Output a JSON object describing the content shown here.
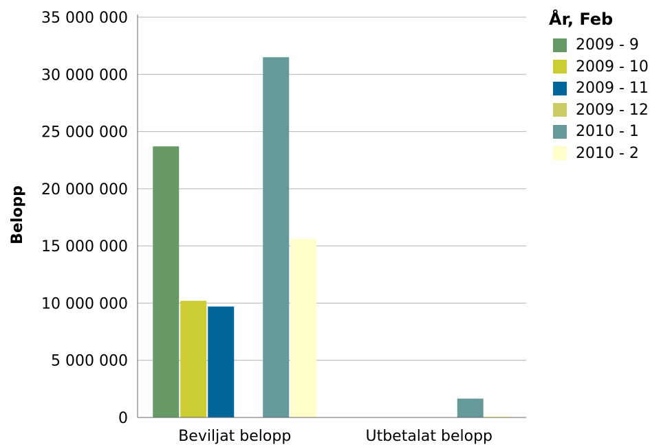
{
  "chart_data": {
    "type": "bar",
    "title": "",
    "xlabel": "",
    "ylabel": "Belopp",
    "ylim": [
      0,
      35000000
    ],
    "yticks": [
      0,
      5000000,
      10000000,
      15000000,
      20000000,
      25000000,
      30000000,
      35000000
    ],
    "ytick_labels": [
      "0",
      "5 000 000",
      "10 000 000",
      "15 000 000",
      "20 000 000",
      "25 000 000",
      "30 000 000",
      "35 000 000"
    ],
    "grid": true,
    "legend_title": "År, Feb",
    "legend_position": "top-right",
    "categories": [
      "Beviljat belopp",
      "Utbetalat belopp"
    ],
    "series": [
      {
        "name": "2009 - 9",
        "color": "#669966",
        "values": [
          23700000,
          0
        ]
      },
      {
        "name": "2009 - 10",
        "color": "#cccc33",
        "values": [
          10200000,
          0
        ]
      },
      {
        "name": "2009 - 11",
        "color": "#006699",
        "values": [
          9700000,
          0
        ]
      },
      {
        "name": "2009 - 12",
        "color": "#cccc66",
        "values": [
          0,
          0
        ]
      },
      {
        "name": "2010 - 1",
        "color": "#669999",
        "values": [
          31500000,
          1650000
        ]
      },
      {
        "name": "2010 - 2",
        "color": "#ffffcc",
        "values": [
          15600000,
          150000
        ]
      }
    ]
  }
}
